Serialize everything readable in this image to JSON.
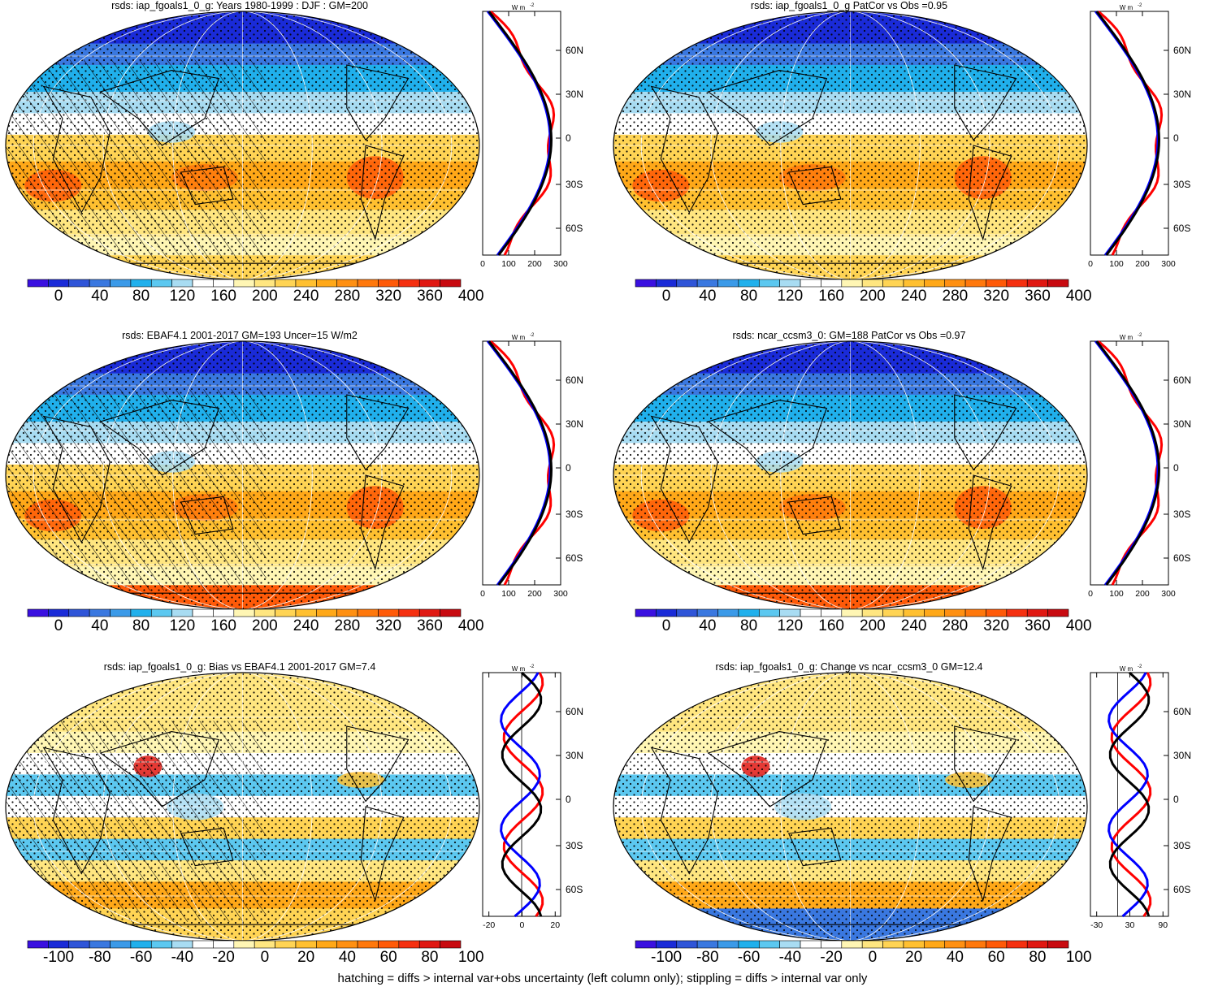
{
  "panels": [
    {
      "title": "rsds: iap_fgoals1_0_g: Years 1980-1999 : DJF : GM=200",
      "cbar_labels": [
        "0",
        "40",
        "80",
        "120",
        "160",
        "200",
        "240",
        "280",
        "320",
        "360",
        "400"
      ],
      "profile_xticks": [
        "0",
        "100",
        "200",
        "300"
      ],
      "kind": "abs",
      "hatched": true
    },
    {
      "title": "rsds: iap_fgoals1_0_g PatCor vs Obs =0.95",
      "cbar_labels": [
        "0",
        "40",
        "80",
        "120",
        "160",
        "200",
        "240",
        "280",
        "320",
        "360",
        "400"
      ],
      "profile_xticks": [
        "0",
        "100",
        "200",
        "300"
      ],
      "kind": "abs",
      "hatched": false
    },
    {
      "title": "rsds: EBAF4.1 2001-2017 GM=193 Uncer=15 W/m2",
      "cbar_labels": [
        "0",
        "40",
        "80",
        "120",
        "160",
        "200",
        "240",
        "280",
        "320",
        "360",
        "400"
      ],
      "profile_xticks": [
        "0",
        "100",
        "200",
        "300"
      ],
      "kind": "abs",
      "hatched": true
    },
    {
      "title": "rsds: ncar_ccsm3_0: GM=188 PatCor vs Obs =0.97",
      "cbar_labels": [
        "0",
        "40",
        "80",
        "120",
        "160",
        "200",
        "240",
        "280",
        "320",
        "360",
        "400"
      ],
      "profile_xticks": [
        "0",
        "100",
        "200",
        "300"
      ],
      "kind": "abs",
      "hatched": false
    },
    {
      "title": "rsds: iap_fgoals1_0_g: Bias vs EBAF4.1 2001-2017 GM=7.4",
      "cbar_labels": [
        "-100",
        "-80",
        "-60",
        "-40",
        "-20",
        "0",
        "20",
        "40",
        "60",
        "80",
        "100"
      ],
      "profile_xticks": [
        "-20",
        "0",
        "20"
      ],
      "kind": "diff",
      "hatched": true
    },
    {
      "title": "rsds: iap_fgoals1_0_g: Change vs ncar_ccsm3_0 GM=12.4",
      "cbar_labels": [
        "-100",
        "-80",
        "-60",
        "-40",
        "-20",
        "0",
        "20",
        "40",
        "60",
        "80",
        "100"
      ],
      "profile_xticks": [
        "-30",
        "30",
        "90"
      ],
      "kind": "diff",
      "hatched": false
    }
  ],
  "profile_units": "W m",
  "profile_units_exp": "-2",
  "lat_labels": [
    "60N",
    "30N",
    "0",
    "30S",
    "60S"
  ],
  "colorbar_colors": [
    "#3a10e0",
    "#1a2bd8",
    "#2f55d8",
    "#3a78e0",
    "#3b9ae8",
    "#20b0ec",
    "#5cc8f0",
    "#a8dcf2",
    "#ffffff",
    "#ffffff",
    "#fff6b4",
    "#ffe680",
    "#ffd454",
    "#ffc030",
    "#ffa818",
    "#ff9012",
    "#ff780c",
    "#ff5a08",
    "#f53010",
    "#e01812",
    "#c80a10"
  ],
  "series_colors": {
    "model": "#ff0000",
    "obs": "#0000ff",
    "ref": "#000000"
  },
  "footer": "hatching = diffs > internal var+obs uncertainty (left column only); stippling = diffs > internal var only"
}
